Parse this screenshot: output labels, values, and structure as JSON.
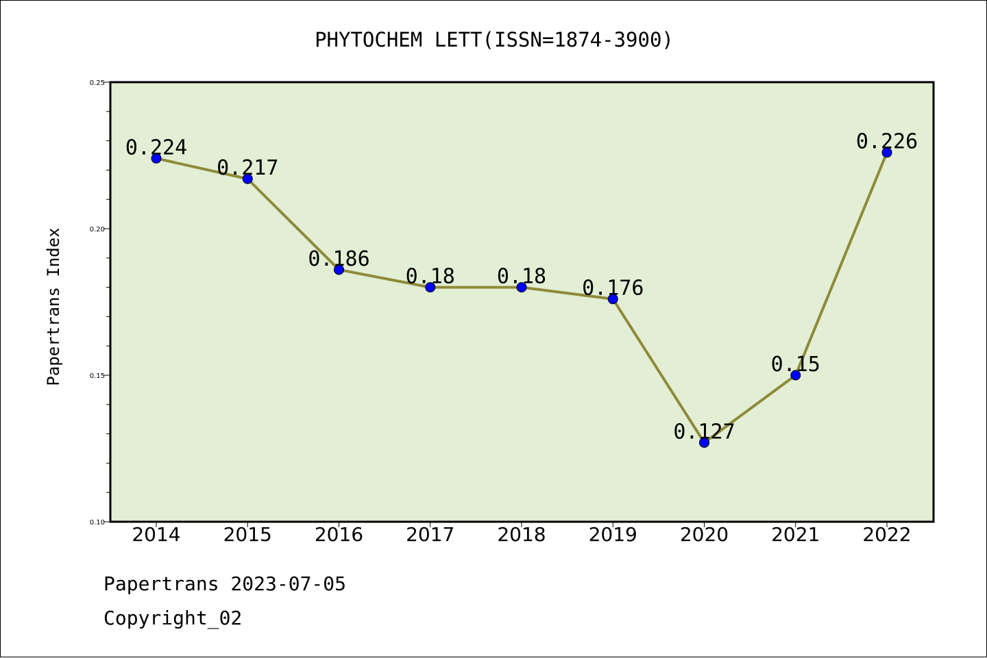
{
  "chart_data": {
    "type": "line",
    "title": "PHYTOCHEM LETT(ISSN=1874-3900)",
    "xlabel": "",
    "ylabel": "Papertrans Index",
    "categories": [
      "2014",
      "2015",
      "2016",
      "2017",
      "2018",
      "2019",
      "2020",
      "2021",
      "2022"
    ],
    "values": [
      0.224,
      0.217,
      0.186,
      0.18,
      0.18,
      0.176,
      0.127,
      0.15,
      0.226
    ],
    "data_labels": [
      "0.224",
      "0.217",
      "0.186",
      "0.18",
      "0.18",
      "0.176",
      "0.127",
      "0.15",
      "0.226"
    ],
    "ylim": [
      0.1,
      0.25
    ],
    "yticks": [
      "0.10",
      "0.15",
      "0.20",
      "0.25"
    ],
    "grid": false,
    "colors": {
      "plot_background": "#e2efd5",
      "line": "#8f8a3a",
      "marker": "#0000ff"
    }
  },
  "footer": {
    "source": "Papertrans 2023-07-05",
    "copyright": "Copyright_02"
  }
}
